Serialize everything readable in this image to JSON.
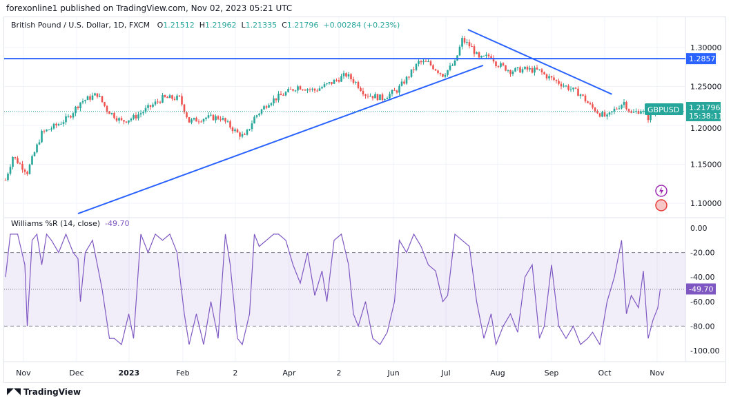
{
  "header": {
    "published": "forexonline1 published on TradingView.com, Nov 02, 2023 05:21 UTC"
  },
  "legend": {
    "symbol": "British Pound / U.S. Dollar, 1D, FXCM",
    "o_label": "O",
    "o": "1.21512",
    "h_label": "H",
    "h": "1.21962",
    "l_label": "L",
    "l": "1.21335",
    "c_label": "C",
    "c": "1.21796",
    "change": "+0.00284 (+0.23%)"
  },
  "price_tags": {
    "hline": "1.28573",
    "ticker": "GBPUSD",
    "last": "1.21796",
    "countdown": "15:38:11"
  },
  "wr_legend": {
    "name": "Williams %R (14, close)",
    "value": "-49.70"
  },
  "footer": {
    "brand": "TradingView"
  },
  "colors": {
    "up": "#26a69a",
    "down": "#ef5350",
    "line": "#2962ff",
    "wr": "#7e57c2"
  },
  "chart_data": [
    {
      "type": "candlestick",
      "title": "British Pound / U.S. Dollar, 1D, FXCM",
      "ylim": [
        1.08,
        1.33
      ],
      "yticks": [
        "1.30000",
        "1.25000",
        "1.20000",
        "1.15000",
        "1.10000"
      ],
      "ytick_values": [
        1.3,
        1.25,
        1.2,
        1.15,
        1.1
      ],
      "xticks": [
        {
          "label": "Nov",
          "i": 7.4
        },
        {
          "label": "Dec",
          "i": 29.4
        },
        {
          "label": "2023",
          "i": 51.1
        },
        {
          "label": "Feb",
          "i": 73.4
        },
        {
          "label": "2",
          "i": 95.1
        },
        {
          "label": "Apr",
          "i": 117.4
        },
        {
          "label": "2",
          "i": 138
        },
        {
          "label": "Jun",
          "i": 160.6
        },
        {
          "label": "Jul",
          "i": 182.3
        },
        {
          "label": "Aug",
          "i": 203.7
        },
        {
          "label": "Sep",
          "i": 226
        },
        {
          "label": "Oct",
          "i": 248
        },
        {
          "label": "Nov",
          "i": 269.7
        }
      ],
      "close_waypoints": [
        [
          0,
          1.13
        ],
        [
          3,
          1.16
        ],
        [
          9,
          1.14
        ],
        [
          15,
          1.19
        ],
        [
          21,
          1.2
        ],
        [
          26,
          1.21
        ],
        [
          31,
          1.23
        ],
        [
          38,
          1.24
        ],
        [
          42,
          1.22
        ],
        [
          48,
          1.205
        ],
        [
          53,
          1.21
        ],
        [
          58,
          1.22
        ],
        [
          65,
          1.235
        ],
        [
          72,
          1.235
        ],
        [
          76,
          1.205
        ],
        [
          83,
          1.21
        ],
        [
          89,
          1.21
        ],
        [
          96,
          1.19
        ],
        [
          99,
          1.185
        ],
        [
          103,
          1.21
        ],
        [
          109,
          1.23
        ],
        [
          115,
          1.24
        ],
        [
          121,
          1.25
        ],
        [
          128,
          1.245
        ],
        [
          135,
          1.255
        ],
        [
          141,
          1.265
        ],
        [
          145,
          1.255
        ],
        [
          149,
          1.24
        ],
        [
          156,
          1.235
        ],
        [
          162,
          1.245
        ],
        [
          166,
          1.26
        ],
        [
          171,
          1.281
        ],
        [
          175,
          1.28
        ],
        [
          181,
          1.265
        ],
        [
          186,
          1.28
        ],
        [
          189,
          1.31
        ],
        [
          193,
          1.3
        ],
        [
          196,
          1.285
        ],
        [
          201,
          1.29
        ],
        [
          203,
          1.28
        ],
        [
          209,
          1.27
        ],
        [
          215,
          1.272
        ],
        [
          221,
          1.27
        ],
        [
          223,
          1.265
        ],
        [
          226,
          1.26
        ],
        [
          232,
          1.25
        ],
        [
          238,
          1.24
        ],
        [
          242,
          1.225
        ],
        [
          246,
          1.215
        ],
        [
          249,
          1.21
        ],
        [
          252,
          1.22
        ],
        [
          256,
          1.23
        ],
        [
          259,
          1.215
        ],
        [
          263,
          1.22
        ],
        [
          266,
          1.21
        ],
        [
          269,
          1.218
        ]
      ],
      "hline": 1.28573,
      "last": 1.21796,
      "trendlines": [
        [
          [
            30,
            1.0867
          ],
          [
            197.7,
            1.277
          ]
        ],
        [
          [
            191.4,
            1.323
          ],
          [
            251,
            1.24
          ]
        ]
      ]
    },
    {
      "type": "line",
      "title": "Williams %R (14, close)",
      "ylim": [
        -100,
        0
      ],
      "yticks": [
        "0.00",
        "-20.00",
        "-40.00",
        "-60.00",
        "-80.00",
        "-100.00"
      ],
      "ytick_values": [
        0,
        -20,
        -40,
        -60,
        -80,
        -100
      ],
      "bands": [
        -20,
        -80
      ],
      "last": -49.7,
      "points": [
        [
          0,
          -40
        ],
        [
          2,
          -5
        ],
        [
          5,
          -5
        ],
        [
          8,
          -30
        ],
        [
          9,
          -80
        ],
        [
          11,
          -10
        ],
        [
          13,
          -5
        ],
        [
          15,
          -30
        ],
        [
          17,
          -5
        ],
        [
          19,
          -10
        ],
        [
          22,
          -20
        ],
        [
          25,
          -5
        ],
        [
          28,
          -20
        ],
        [
          30,
          -25
        ],
        [
          31,
          -60
        ],
        [
          33,
          -20
        ],
        [
          36,
          -10
        ],
        [
          40,
          -50
        ],
        [
          43,
          -90
        ],
        [
          45,
          -90
        ],
        [
          48,
          -95
        ],
        [
          51,
          -70
        ],
        [
          53,
          -90
        ],
        [
          56,
          -5
        ],
        [
          59,
          -20
        ],
        [
          62,
          -5
        ],
        [
          65,
          -10
        ],
        [
          68,
          -5
        ],
        [
          71,
          -20
        ],
        [
          74,
          -70
        ],
        [
          76,
          -95
        ],
        [
          79,
          -70
        ],
        [
          82,
          -95
        ],
        [
          85,
          -60
        ],
        [
          88,
          -90
        ],
        [
          91,
          -5
        ],
        [
          93,
          -30
        ],
        [
          96,
          -90
        ],
        [
          98,
          -95
        ],
        [
          101,
          -70
        ],
        [
          103,
          -5
        ],
        [
          105,
          -15
        ],
        [
          108,
          -10
        ],
        [
          111,
          -5
        ],
        [
          113,
          -5
        ],
        [
          116,
          -10
        ],
        [
          119,
          -30
        ],
        [
          122,
          -45
        ],
        [
          125,
          -20
        ],
        [
          128,
          -55
        ],
        [
          131,
          -35
        ],
        [
          133,
          -60
        ],
        [
          136,
          -10
        ],
        [
          139,
          -5
        ],
        [
          142,
          -30
        ],
        [
          144,
          -70
        ],
        [
          146,
          -80
        ],
        [
          149,
          -60
        ],
        [
          152,
          -90
        ],
        [
          155,
          -95
        ],
        [
          158,
          -85
        ],
        [
          161,
          -60
        ],
        [
          163,
          -10
        ],
        [
          166,
          -20
        ],
        [
          169,
          -5
        ],
        [
          172,
          -15
        ],
        [
          175,
          -30
        ],
        [
          178,
          -35
        ],
        [
          181,
          -60
        ],
        [
          183,
          -55
        ],
        [
          186,
          -5
        ],
        [
          189,
          -10
        ],
        [
          192,
          -15
        ],
        [
          195,
          -60
        ],
        [
          198,
          -90
        ],
        [
          201,
          -70
        ],
        [
          203,
          -95
        ],
        [
          206,
          -80
        ],
        [
          209,
          -70
        ],
        [
          212,
          -85
        ],
        [
          215,
          -40
        ],
        [
          218,
          -30
        ],
        [
          221,
          -90
        ],
        [
          223,
          -80
        ],
        [
          226,
          -30
        ],
        [
          229,
          -80
        ],
        [
          232,
          -90
        ],
        [
          235,
          -80
        ],
        [
          238,
          -95
        ],
        [
          241,
          -90
        ],
        [
          243,
          -85
        ],
        [
          246,
          -95
        ],
        [
          249,
          -60
        ],
        [
          252,
          -40
        ],
        [
          255,
          -10
        ],
        [
          257,
          -70
        ],
        [
          259,
          -55
        ],
        [
          262,
          -65
        ],
        [
          264,
          -35
        ],
        [
          266,
          -90
        ],
        [
          268,
          -75
        ],
        [
          270,
          -65
        ],
        [
          271,
          -49.7
        ]
      ]
    }
  ]
}
